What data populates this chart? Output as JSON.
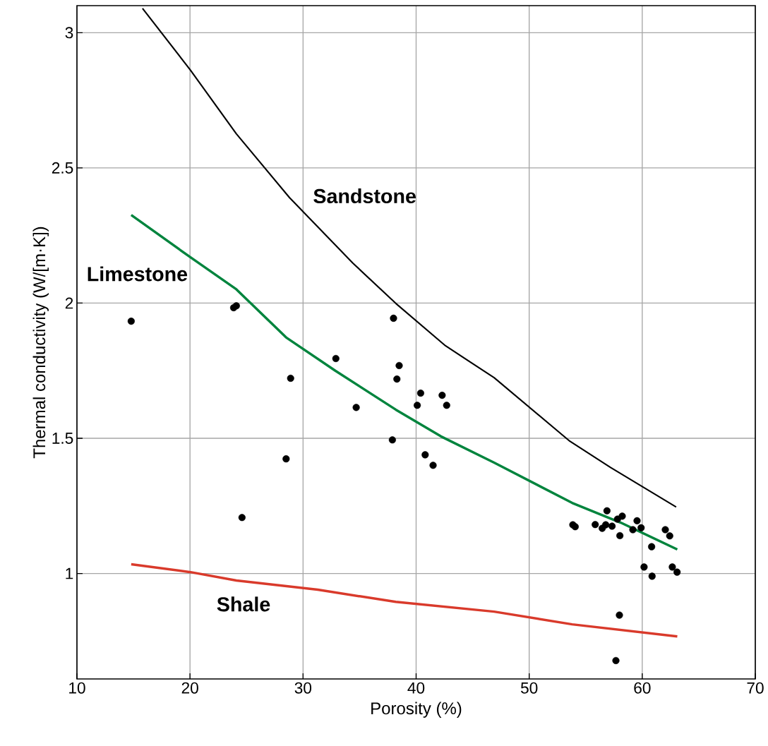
{
  "chart_data": {
    "type": "scatter",
    "xlabel": "Porosity (%)",
    "ylabel": "Thermal conductivity (W/[m·K])",
    "xlim": [
      10,
      70
    ],
    "ylim": [
      0.61,
      3.1
    ],
    "xticks": [
      10,
      20,
      30,
      40,
      50,
      60,
      70
    ],
    "yticks": [
      1,
      1.5,
      2,
      2.5,
      3
    ],
    "grid": true,
    "series": [
      {
        "type": "line",
        "name": "Sandstone",
        "color": "#000000",
        "marker": "none",
        "line_style": "solid",
        "x": [
          15.8,
          20.05,
          24.1,
          28.8,
          34.4,
          38.2,
          42.6,
          46.9,
          53.6,
          57.2,
          63.0
        ],
        "values": [
          3.09,
          2.861,
          2.626,
          2.39,
          2.148,
          1.999,
          1.842,
          1.724,
          1.489,
          1.392,
          1.246
        ]
      },
      {
        "type": "line",
        "name": "Limestone",
        "color": "#00843d",
        "marker": "none",
        "line_style": "solid",
        "x": [
          14.8,
          20.05,
          24.1,
          28.5,
          32.85,
          38.2,
          42.2,
          46.9,
          53.8,
          58.1,
          63.1
        ],
        "values": [
          2.326,
          2.169,
          2.051,
          1.873,
          1.75,
          1.606,
          1.507,
          1.41,
          1.261,
          1.188,
          1.089
        ]
      },
      {
        "type": "line",
        "name": "Shale",
        "color": "#d93a2b",
        "marker": "none",
        "line_style": "solid",
        "x": [
          14.8,
          20.05,
          24.1,
          31.3,
          38.2,
          46.9,
          53.8,
          63.1
        ],
        "values": [
          1.034,
          1.005,
          0.974,
          0.94,
          0.895,
          0.859,
          0.812,
          0.767
        ]
      },
      {
        "type": "scatter",
        "color": "#000000",
        "marker": "circle",
        "x": [
          14.8,
          23.86,
          24.1,
          24.6,
          28.5,
          28.9,
          32.9,
          34.7,
          37.9,
          38.0,
          38.3,
          38.5,
          40.1,
          40.4,
          40.8,
          41.5,
          42.3,
          42.7,
          53.86,
          54.07,
          55.84,
          56.88,
          56.46,
          56.77,
          57.33,
          57.81,
          58.23,
          58.02,
          59.17,
          59.54,
          59.9,
          60.83,
          62.04,
          62.43,
          60.16,
          60.87,
          62.66,
          63.08,
          57.98,
          57.67
        ],
        "values": [
          1.933,
          1.983,
          1.99,
          1.207,
          1.424,
          1.722,
          1.795,
          1.614,
          1.494,
          1.944,
          1.719,
          1.769,
          1.622,
          1.667,
          1.439,
          1.4,
          1.659,
          1.622,
          1.18,
          1.173,
          1.181,
          1.232,
          1.167,
          1.18,
          1.175,
          1.201,
          1.212,
          1.14,
          1.162,
          1.195,
          1.169,
          1.099,
          1.162,
          1.139,
          1.024,
          0.99,
          1.024,
          1.005,
          0.846,
          0.678
        ]
      }
    ]
  }
}
